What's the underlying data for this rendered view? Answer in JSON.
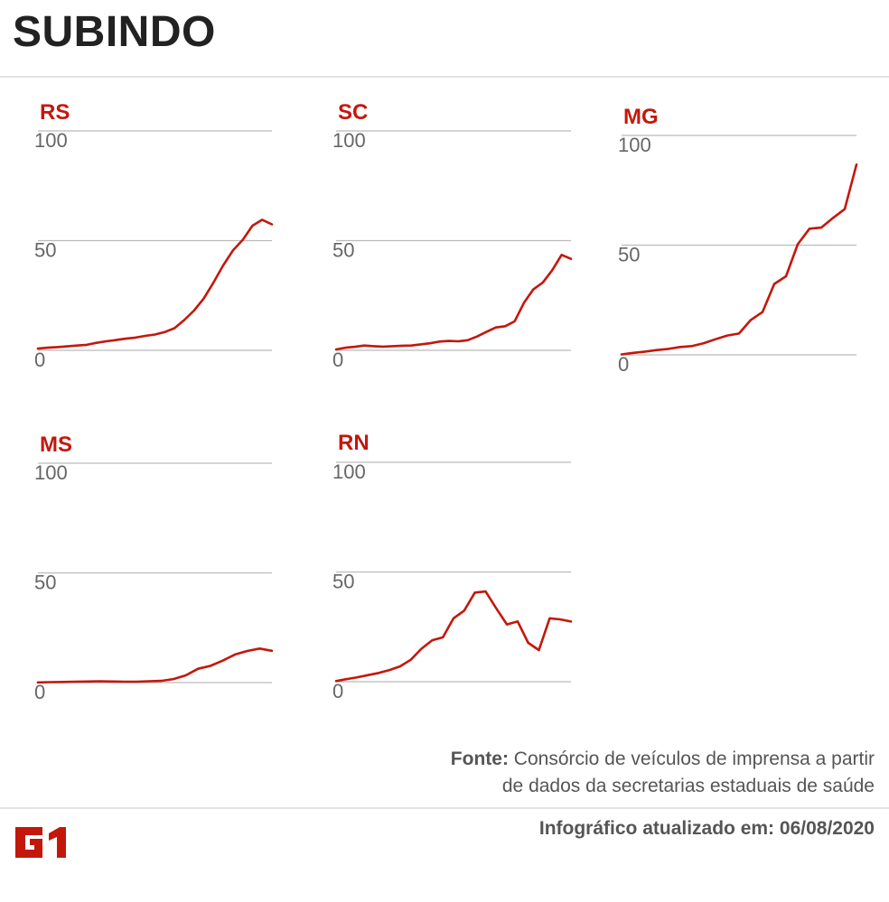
{
  "header": {
    "title": "SUBINDO"
  },
  "footer": {
    "source_label": "Fonte:",
    "source_line1": "Consórcio de veículos de imprensa a partir",
    "source_line2": "de dados da secretarias estaduais de saúde",
    "updated": "Infográfico atualizado em: 06/08/2020",
    "logo_text": "G1"
  },
  "colors": {
    "line": "#c4170c",
    "label": "#c4170c",
    "grid": "#bbbbbb",
    "tick": "#666666"
  },
  "chart_data": [
    {
      "type": "line",
      "label": "RS",
      "ylim": [
        0,
        100
      ],
      "yticks": [
        0,
        50,
        100
      ],
      "values": [
        0.8,
        1.2,
        1.5,
        1.8,
        2.2,
        2.5,
        3.4,
        4.1,
        4.7,
        5.3,
        5.8,
        6.6,
        7.2,
        8.3,
        10.1,
        13.8,
        18.1,
        23.6,
        30.9,
        38.7,
        45.5,
        50.3,
        56.8,
        59.5,
        57.4
      ]
    },
    {
      "type": "line",
      "label": "SC",
      "ylim": [
        0,
        100
      ],
      "yticks": [
        0,
        50,
        100
      ],
      "values": [
        0.4,
        1.2,
        1.6,
        2.2,
        1.9,
        1.7,
        1.9,
        2.1,
        2.2,
        2.7,
        3.2,
        4.0,
        4.3,
        4.1,
        4.6,
        6.3,
        8.4,
        10.4,
        11.0,
        13.2,
        21.7,
        27.8,
        30.9,
        36.5,
        43.5,
        41.7
      ]
    },
    {
      "type": "line",
      "label": "MG",
      "ylim": [
        0,
        100
      ],
      "yticks": [
        0,
        50,
        100
      ],
      "values": [
        0.2,
        0.9,
        1.5,
        2.2,
        2.7,
        3.6,
        4.0,
        5.3,
        7.1,
        8.8,
        9.7,
        15.9,
        19.5,
        32.3,
        35.8,
        50.4,
        57.5,
        58.0,
        62.4,
        66.4,
        86.7
      ]
    },
    {
      "type": "line",
      "label": "MS",
      "ylim": [
        0,
        100
      ],
      "yticks": [
        0,
        50,
        100
      ],
      "values": [
        0.1,
        0.2,
        0.3,
        0.4,
        0.5,
        0.6,
        0.5,
        0.4,
        0.4,
        0.6,
        0.8,
        1.6,
        3.3,
        6.3,
        7.6,
        10.0,
        12.8,
        14.4,
        15.5,
        14.5
      ]
    },
    {
      "type": "line",
      "label": "RN",
      "ylim": [
        0,
        100
      ],
      "yticks": [
        0,
        50,
        100
      ],
      "values": [
        0.3,
        1.2,
        2.0,
        3.0,
        4.0,
        5.3,
        7.0,
        10.0,
        15.0,
        18.9,
        20.2,
        28.9,
        32.4,
        40.6,
        41.1,
        33.4,
        26.1,
        27.5,
        17.7,
        14.4,
        28.9,
        28.4,
        27.4
      ]
    }
  ]
}
